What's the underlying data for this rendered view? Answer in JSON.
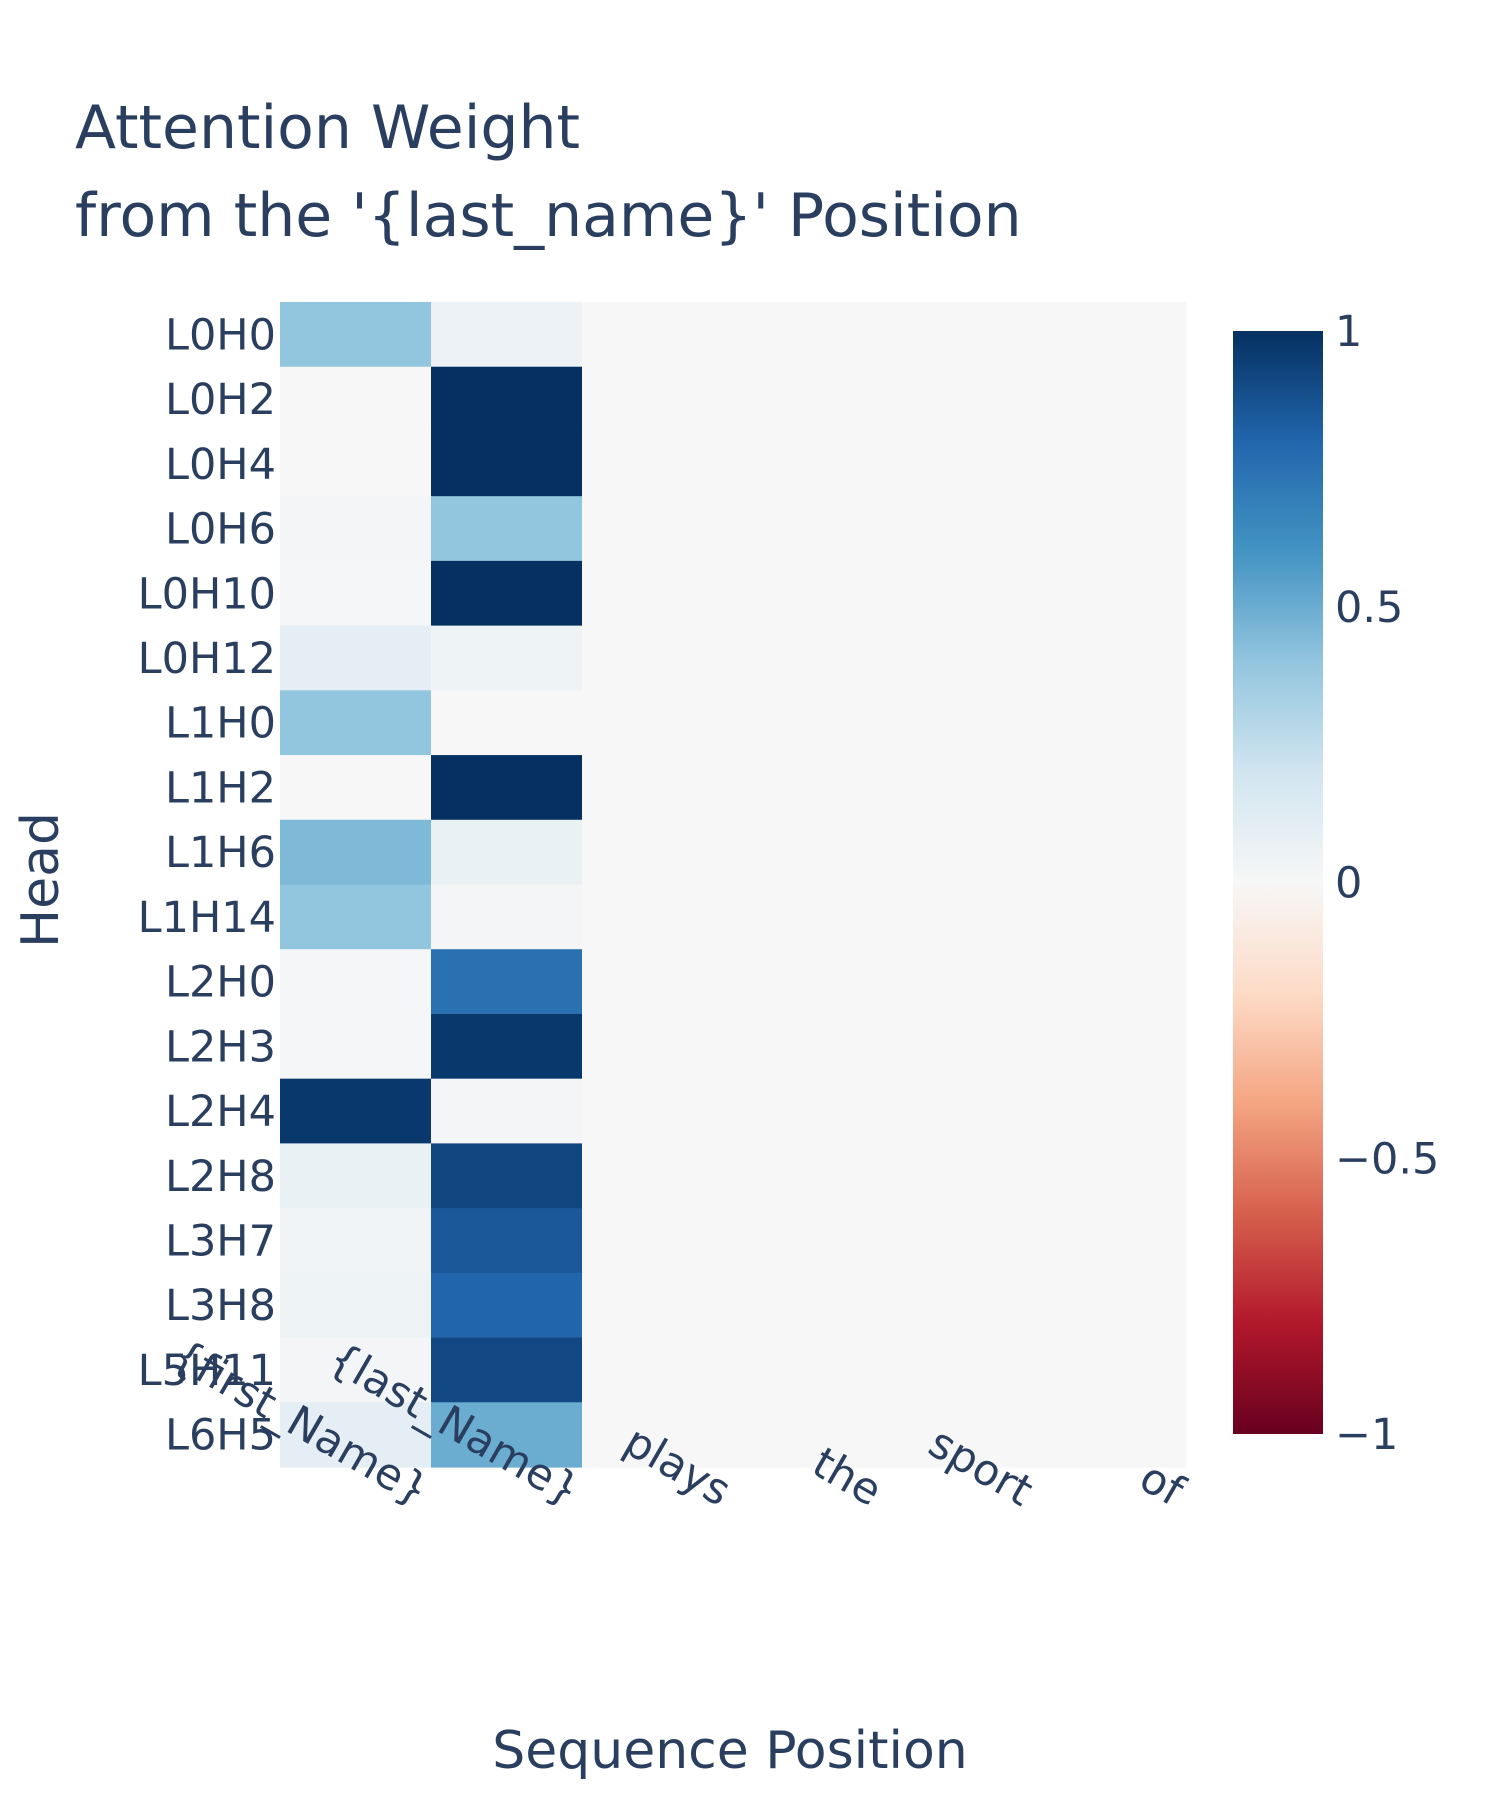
{
  "chart_data": {
    "type": "heatmap",
    "title_lines": [
      "Attention Weight",
      "from the '{last_name}' Position"
    ],
    "xlabel": "Sequence Position",
    "ylabel": "Head",
    "x_categories": [
      "{first_Name}",
      "{last_Name}",
      "plays",
      "the",
      "sport",
      "of"
    ],
    "y_categories": [
      "L0H0",
      "L0H2",
      "L0H4",
      "L0H6",
      "L0H10",
      "L0H12",
      "L1H0",
      "L1H2",
      "L1H6",
      "L1H14",
      "L2H0",
      "L2H3",
      "L2H4",
      "L2H8",
      "L3H7",
      "L3H8",
      "L5H11",
      "L6H5"
    ],
    "values": [
      [
        0.4,
        0.06,
        0,
        0,
        0,
        0
      ],
      [
        0.0,
        1.0,
        0,
        0,
        0,
        0
      ],
      [
        0.0,
        1.0,
        0,
        0,
        0,
        0
      ],
      [
        0.02,
        0.4,
        0,
        0,
        0,
        0
      ],
      [
        0.01,
        1.0,
        0,
        0,
        0,
        0
      ],
      [
        0.1,
        0.05,
        0,
        0,
        0,
        0
      ],
      [
        0.4,
        0.0,
        0,
        0,
        0,
        0
      ],
      [
        0.0,
        1.0,
        0,
        0,
        0,
        0
      ],
      [
        0.45,
        0.07,
        0,
        0,
        0,
        0
      ],
      [
        0.4,
        0.02,
        0,
        0,
        0,
        0
      ],
      [
        0.01,
        0.75,
        0,
        0,
        0,
        0
      ],
      [
        0.01,
        0.97,
        0,
        0,
        0,
        0
      ],
      [
        0.97,
        0.02,
        0,
        0,
        0,
        0
      ],
      [
        0.07,
        0.92,
        0,
        0,
        0,
        0
      ],
      [
        0.03,
        0.85,
        0,
        0,
        0,
        0
      ],
      [
        0.05,
        0.8,
        0,
        0,
        0,
        0
      ],
      [
        0.02,
        0.91,
        0,
        0,
        0,
        0
      ],
      [
        0.1,
        0.5,
        0,
        0,
        0,
        0
      ]
    ],
    "zlim": [
      -1,
      1
    ],
    "colorscale": "RdBu",
    "colorbar_ticks": [
      1,
      0.5,
      0,
      -0.5,
      -1
    ],
    "colorbar_tick_labels": [
      "1",
      "0.5",
      "0",
      "−0.5",
      "−1"
    ],
    "colors": {
      "text": "#2a3f5f",
      "background": "#ffffff"
    }
  }
}
